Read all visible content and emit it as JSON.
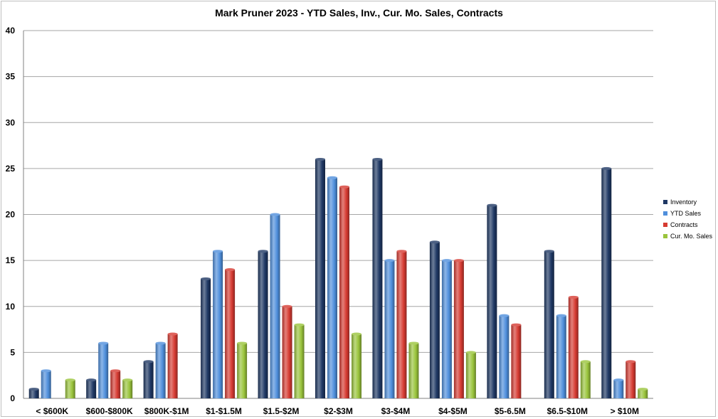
{
  "chart_data": {
    "type": "bar",
    "title": "Mark Pruner 2023 - YTD Sales, Inv., Cur. Mo. Sales, Contracts",
    "xlabel": "",
    "ylabel": "",
    "ylim": [
      0,
      40
    ],
    "yticks": [
      0,
      5,
      10,
      15,
      20,
      25,
      30,
      35,
      40
    ],
    "grid": true,
    "legend_position": "right",
    "categories": [
      "< $600K",
      "$600-$800K",
      "$800K-$1M",
      "$1-$1.5M",
      "$1.5-$2M",
      "$2-$3M",
      "$3-$4M",
      "$4-$5M",
      "$5-6.5M",
      "$6.5-$10M",
      "> $10M"
    ],
    "series": [
      {
        "name": "Inventory",
        "color": "#1f3864",
        "values": [
          1,
          2,
          4,
          13,
          16,
          26,
          26,
          17,
          21,
          16,
          25
        ]
      },
      {
        "name": "YTD Sales",
        "color": "#4f8fdc",
        "values": [
          3,
          6,
          6,
          16,
          20,
          24,
          15,
          15,
          9,
          9,
          2
        ]
      },
      {
        "name": "Contracts",
        "color": "#d63b32",
        "values": [
          0,
          3,
          7,
          14,
          10,
          23,
          16,
          15,
          8,
          11,
          4
        ]
      },
      {
        "name": "Cur. Mo. Sales",
        "color": "#9ac43c",
        "values": [
          2,
          2,
          0,
          6,
          8,
          7,
          6,
          5,
          0,
          4,
          1
        ]
      }
    ]
  }
}
